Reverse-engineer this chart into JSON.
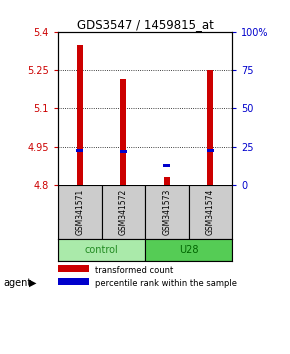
{
  "title": "GDS3547 / 1459815_at",
  "samples": [
    "GSM341571",
    "GSM341572",
    "GSM341573",
    "GSM341574"
  ],
  "red_bar_bottoms": [
    4.8,
    4.8,
    4.8,
    4.8
  ],
  "red_bar_tops": [
    5.35,
    5.215,
    4.83,
    5.25
  ],
  "blue_bar_values": [
    4.935,
    4.932,
    4.875,
    4.933
  ],
  "ylim": [
    4.8,
    5.4
  ],
  "yticks_left": [
    4.8,
    4.95,
    5.1,
    5.25,
    5.4
  ],
  "yticks_right": [
    0,
    25,
    50,
    75,
    100
  ],
  "ytick_labels_left": [
    "4.8",
    "4.95",
    "5.1",
    "5.25",
    "5.4"
  ],
  "ytick_labels_right": [
    "0",
    "25",
    "50",
    "75",
    "100%"
  ],
  "grid_values": [
    4.95,
    5.1,
    5.25
  ],
  "red_color": "#cc0000",
  "blue_color": "#0000cc",
  "control_color": "#aaeaaa",
  "u28_color": "#55cc55",
  "sample_bg_color": "#cccccc",
  "legend_red": "transformed count",
  "legend_blue": "percentile rank within the sample",
  "agent_label": "agent",
  "control_label": "control",
  "u28_label": "U28",
  "blue_bar_height": 0.012,
  "red_bar_width": 0.13,
  "blue_bar_width": 0.16
}
